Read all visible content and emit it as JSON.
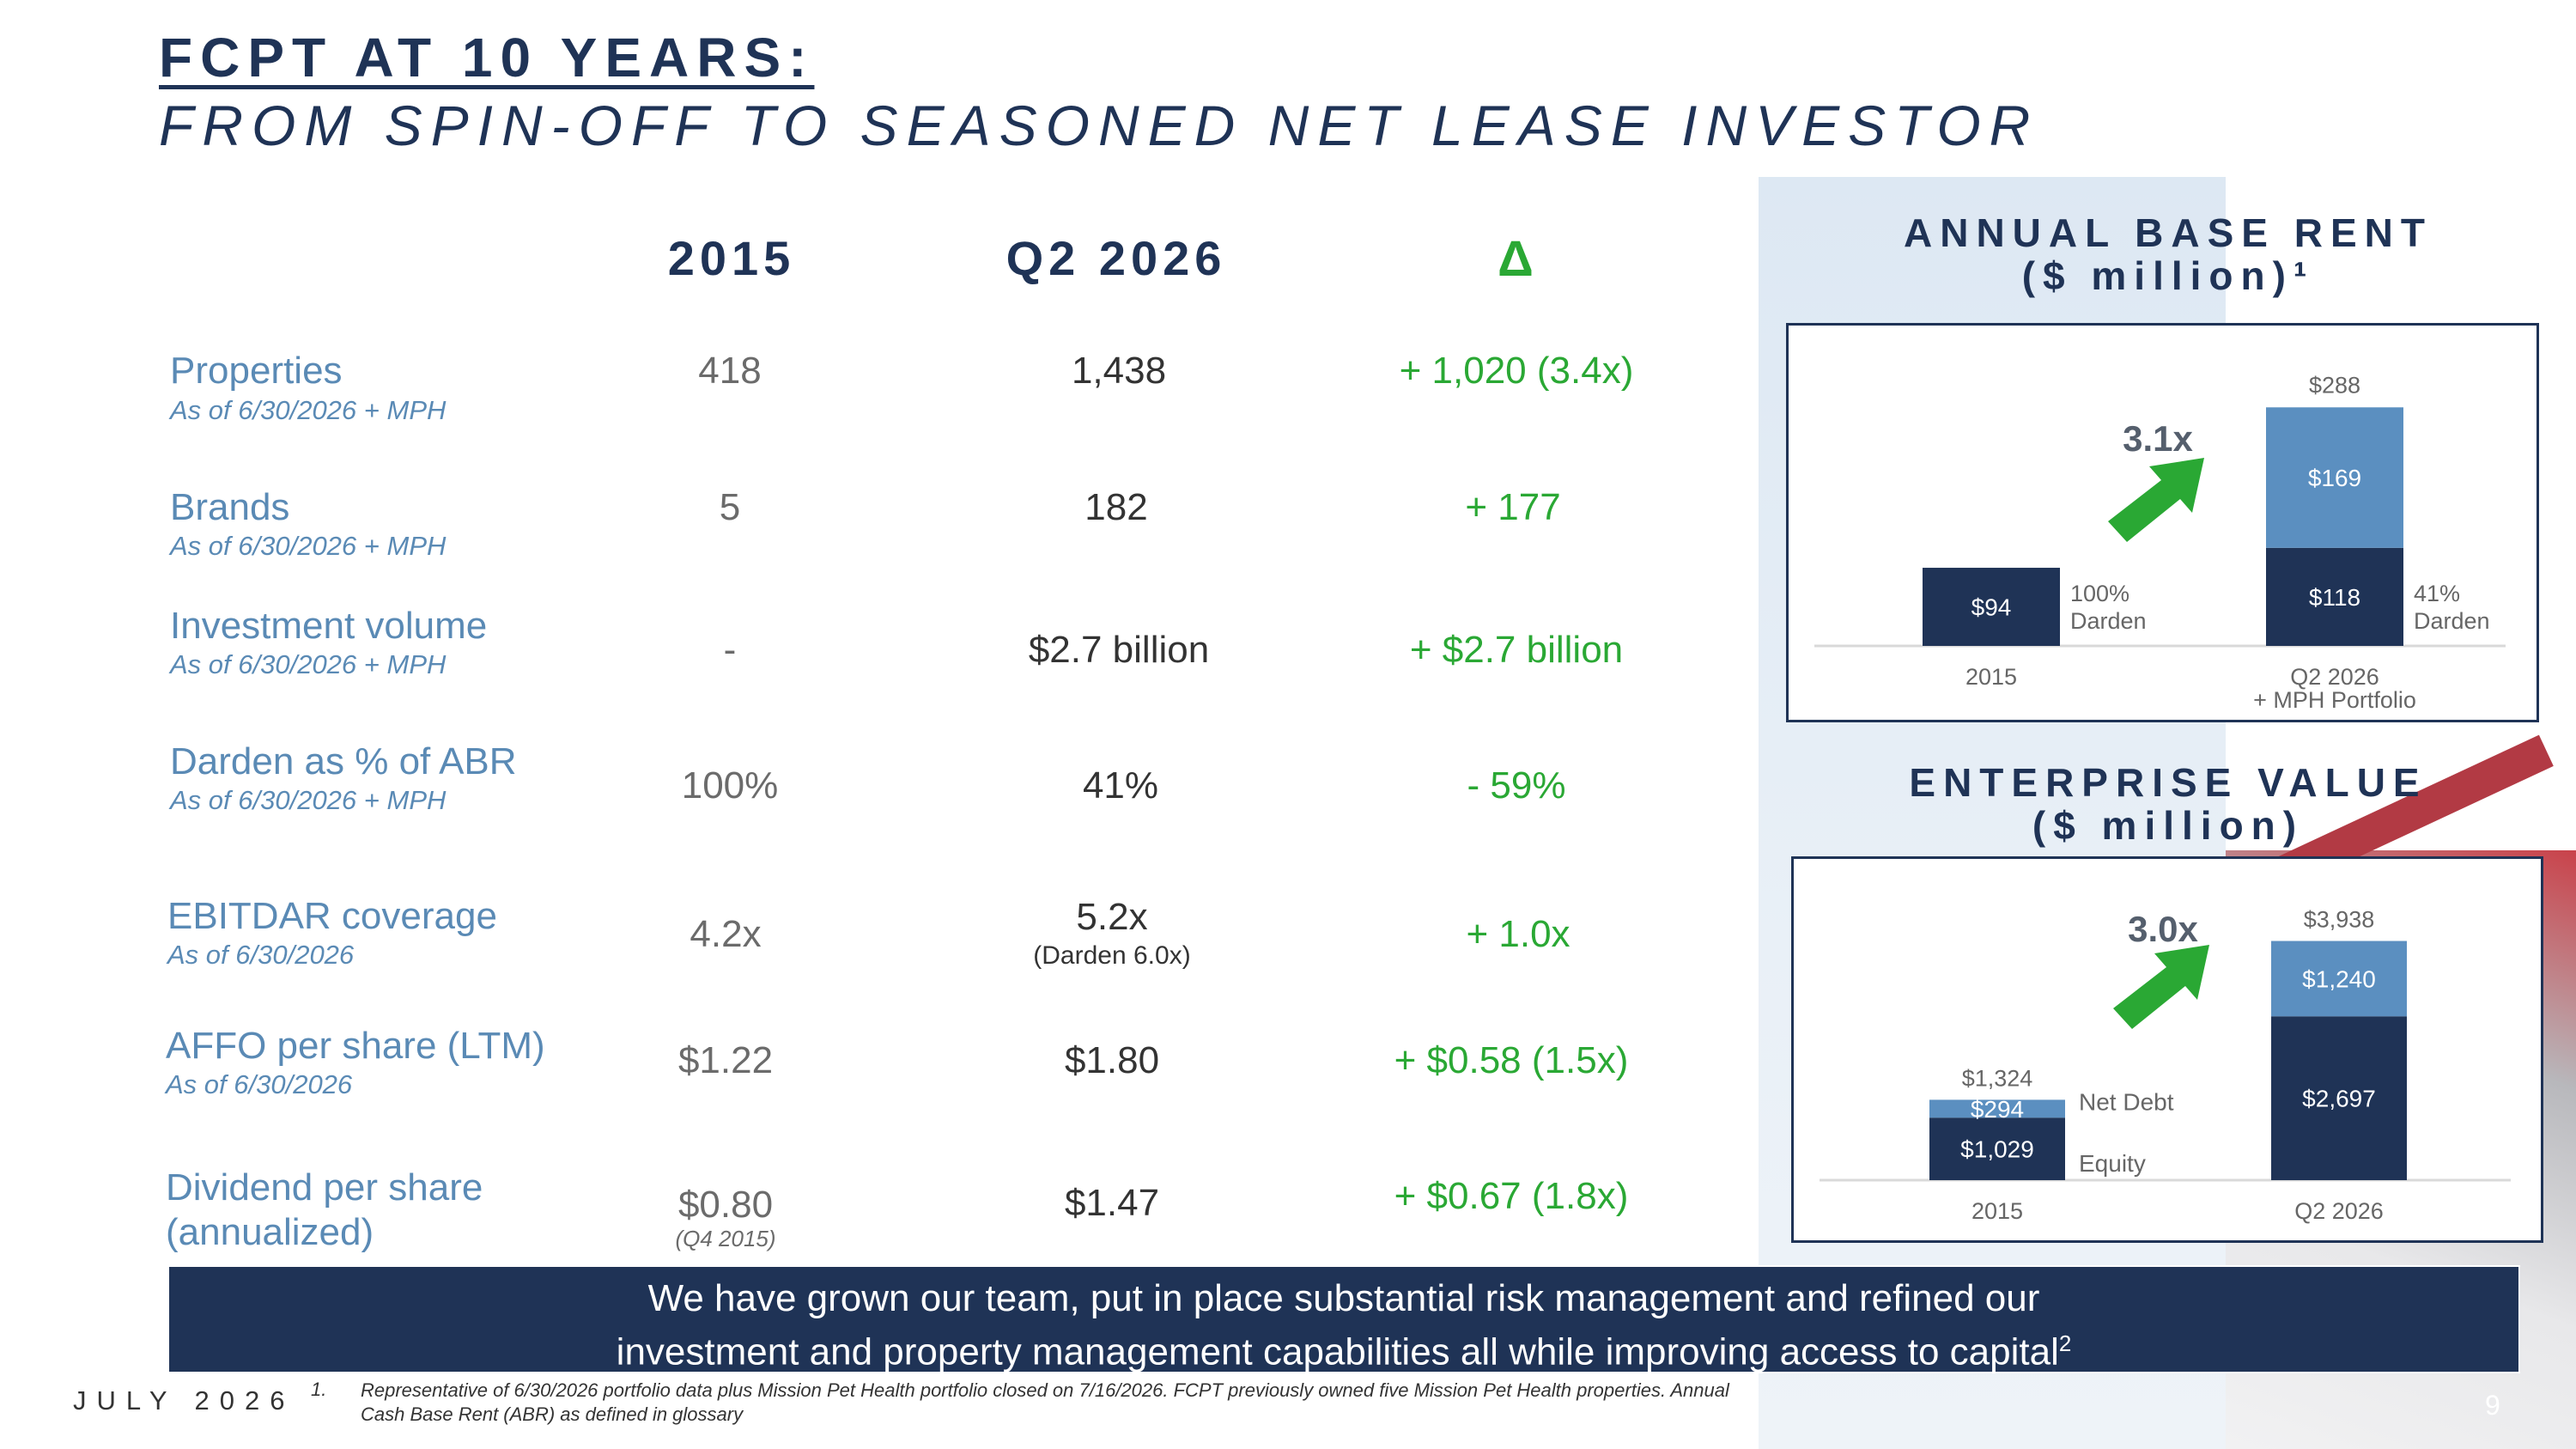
{
  "header": {
    "title_line1": "FCPT AT 10 YEARS:",
    "title_line2": "FROM SPIN-OFF TO SEASONED NET LEASE INVESTOR"
  },
  "table": {
    "columns": [
      "2015",
      "Q2 2026",
      "Δ"
    ],
    "rows": [
      {
        "label": "Properties",
        "sub": "As of 6/30/2026 + MPH",
        "v2015": "418",
        "vq2": "1,438",
        "vq2_note": "",
        "v2015_note": "",
        "delta": "+ 1,020 (3.4x)"
      },
      {
        "label": "Brands",
        "sub": "As of 6/30/2026 + MPH",
        "v2015": "5",
        "vq2": "182",
        "vq2_note": "",
        "v2015_note": "",
        "delta": "+ 177"
      },
      {
        "label": "Investment volume",
        "sub": "As of 6/30/2026 + MPH",
        "v2015": "-",
        "vq2": "$2.7 billion",
        "vq2_note": "",
        "v2015_note": "",
        "delta": "+ $2.7 billion"
      },
      {
        "label": "Darden as % of ABR",
        "sub": "As of 6/30/2026 + MPH",
        "v2015": "100%",
        "vq2": "41%",
        "vq2_note": "",
        "v2015_note": "",
        "delta": "- 59%"
      },
      {
        "label": "EBITDAR coverage",
        "sub": "As of 6/30/2026",
        "v2015": "4.2x",
        "vq2": "5.2x",
        "vq2_note": "(Darden 6.0x)",
        "v2015_note": "",
        "delta": "+ 1.0x"
      },
      {
        "label": "AFFO per share (LTM)",
        "sub": "As of 6/30/2026",
        "v2015": "$1.22",
        "vq2": "$1.80",
        "vq2_note": "",
        "v2015_note": "",
        "delta": "+ $0.58 (1.5x)"
      },
      {
        "label": "Dividend per share",
        "label2": "(annualized)",
        "sub": "",
        "v2015": "$0.80",
        "vq2": "$1.47",
        "vq2_note": "",
        "v2015_note": "(Q4 2015)",
        "delta": "+ $0.67 (1.8x)"
      }
    ]
  },
  "chart_data": [
    {
      "type": "bar",
      "title": "ANNUAL BASE RENT",
      "subtitle": "($ million)¹",
      "categories": [
        "2015",
        "Q2 2026"
      ],
      "category_sublabels": [
        "",
        "+ MPH Portfolio"
      ],
      "series": [
        {
          "name": "",
          "values": [
            94,
            118
          ],
          "labels": [
            "$94",
            "$118"
          ],
          "color": "#1f3356"
        },
        {
          "name": "",
          "values": [
            0,
            169
          ],
          "labels": [
            "",
            "$169"
          ],
          "color": "#5b8fc0"
        }
      ],
      "totals": [
        "",
        "$288"
      ],
      "total_values": [
        94,
        288
      ],
      "side_labels": [
        [
          "100%",
          "Darden"
        ],
        [
          "41%",
          "Darden"
        ]
      ],
      "multiplier": "3.1x",
      "ylim": [
        0,
        310
      ],
      "grid": false,
      "legend": "none"
    },
    {
      "type": "bar",
      "title": "ENTERPRISE VALUE",
      "subtitle": "($ million)",
      "categories": [
        "2015",
        "Q2 2026"
      ],
      "category_sublabels": [
        "",
        ""
      ],
      "series": [
        {
          "name": "Equity",
          "values": [
            1029,
            2697
          ],
          "labels": [
            "$1,029",
            "$2,697"
          ],
          "color": "#1f3356"
        },
        {
          "name": "Net Debt",
          "values": [
            294,
            1240
          ],
          "labels": [
            "$294",
            "$1,240"
          ],
          "color": "#5b8fc0"
        }
      ],
      "totals": [
        "$1,324",
        "$3,938"
      ],
      "total_values": [
        1324,
        3938
      ],
      "multiplier": "3.0x",
      "ylim": [
        0,
        4100
      ],
      "grid": false,
      "legend": "inline-right-of-first-bar"
    }
  ],
  "banner": {
    "line1": "We have grown our team, put in place substantial risk management and refined our",
    "line2": "investment and property management capabilities all while improving access to capital",
    "sup": "2"
  },
  "footer": {
    "date": "JULY 2026",
    "footnote_num": "1.",
    "footnote_text": "Representative of 6/30/2026 portfolio data plus Mission Pet Health portfolio closed on 7/16/2026. FCPT previously owned five Mission Pet Health properties. Annual Cash Base Rent (ABR) as defined in glossary",
    "page": "9"
  },
  "colors": {
    "navy": "#1f3356",
    "light_blue": "#5b8fc0",
    "label_blue": "#5a8ab5",
    "green": "#2aa834"
  }
}
